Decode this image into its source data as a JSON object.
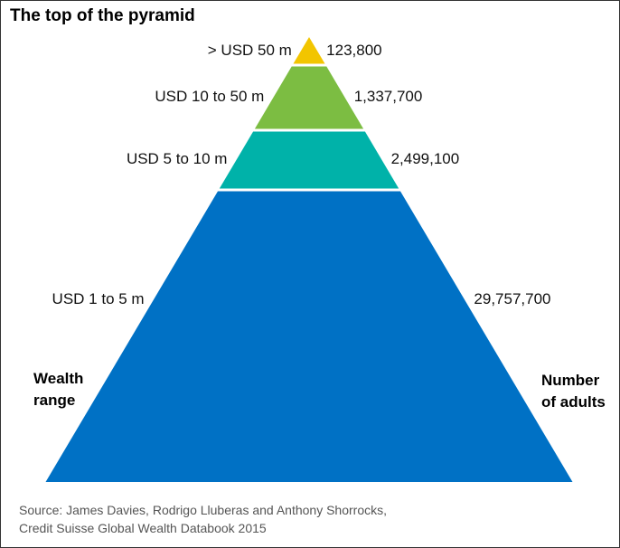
{
  "chart_data": {
    "type": "pyramid",
    "title": "The top of the pyramid",
    "left_axis_name": [
      "Wealth",
      "range"
    ],
    "right_axis_name": [
      "Number",
      "of adults"
    ],
    "tiers": [
      {
        "range": "> USD 50 m",
        "adults_label": "123,800",
        "adults": 123800,
        "color": "#f2c500"
      },
      {
        "range": "USD 10 to 50 m",
        "adults_label": "1,337,700",
        "adults": 1337700,
        "color": "#7cbd42"
      },
      {
        "range": "USD 5 to 10 m",
        "adults_label": "2,499,100",
        "adults": 2499100,
        "color": "#00b2a9"
      },
      {
        "range": "USD 1 to 5 m",
        "adults_label": "29,757,700",
        "adults": 29757700,
        "color": "#0071c5"
      }
    ],
    "source": [
      "Source: James Davies, Rodrigo Lluberas and Anthony Shorrocks,",
      "Credit Suisse Global Wealth Databook 2015"
    ]
  }
}
